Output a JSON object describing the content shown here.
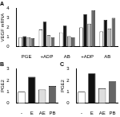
{
  "chart_data": [
    {
      "type": "bar",
      "title": "A",
      "y_label": "VEGF mRNA",
      "categories": [
        "PGE",
        "+ADP",
        "AB",
        "+ADP",
        "AB"
      ],
      "series": [
        {
          "color": "#ffffff",
          "values": [
            1.0,
            1.8,
            1.5,
            2.0,
            1.6
          ]
        },
        {
          "color": "#111111",
          "values": [
            1.1,
            2.6,
            2.2,
            3.4,
            2.8
          ]
        },
        {
          "color": "#bbbbbb",
          "values": [
            1.0,
            1.2,
            1.1,
            2.4,
            1.9
          ]
        },
        {
          "color": "#666666",
          "values": [
            0.9,
            1.0,
            1.0,
            3.8,
            3.0
          ]
        }
      ],
      "ylim": [
        0,
        4
      ],
      "yticks": [
        0,
        1,
        2,
        3,
        4
      ],
      "grid": false
    },
    {
      "type": "bar",
      "title": "B",
      "y_label": "PGE2",
      "categories": [
        "-",
        "E",
        "AE",
        "PB"
      ],
      "values": [
        1.0,
        2.3,
        1.2,
        1.5
      ],
      "colors": [
        "#ffffff",
        "#111111",
        "#dddddd",
        "#666666"
      ],
      "ylim": [
        0,
        3
      ],
      "yticks": [
        0,
        1,
        2,
        3
      ],
      "grid": false
    },
    {
      "type": "bar",
      "title": "C",
      "y_label": "PGE2",
      "categories": [
        "-",
        "E",
        "AE",
        "PB"
      ],
      "values": [
        1.0,
        2.6,
        1.3,
        1.9
      ],
      "colors": [
        "#ffffff",
        "#111111",
        "#dddddd",
        "#666666"
      ],
      "ylim": [
        0,
        3
      ],
      "yticks": [
        0,
        1,
        2,
        3
      ],
      "grid": false
    }
  ]
}
